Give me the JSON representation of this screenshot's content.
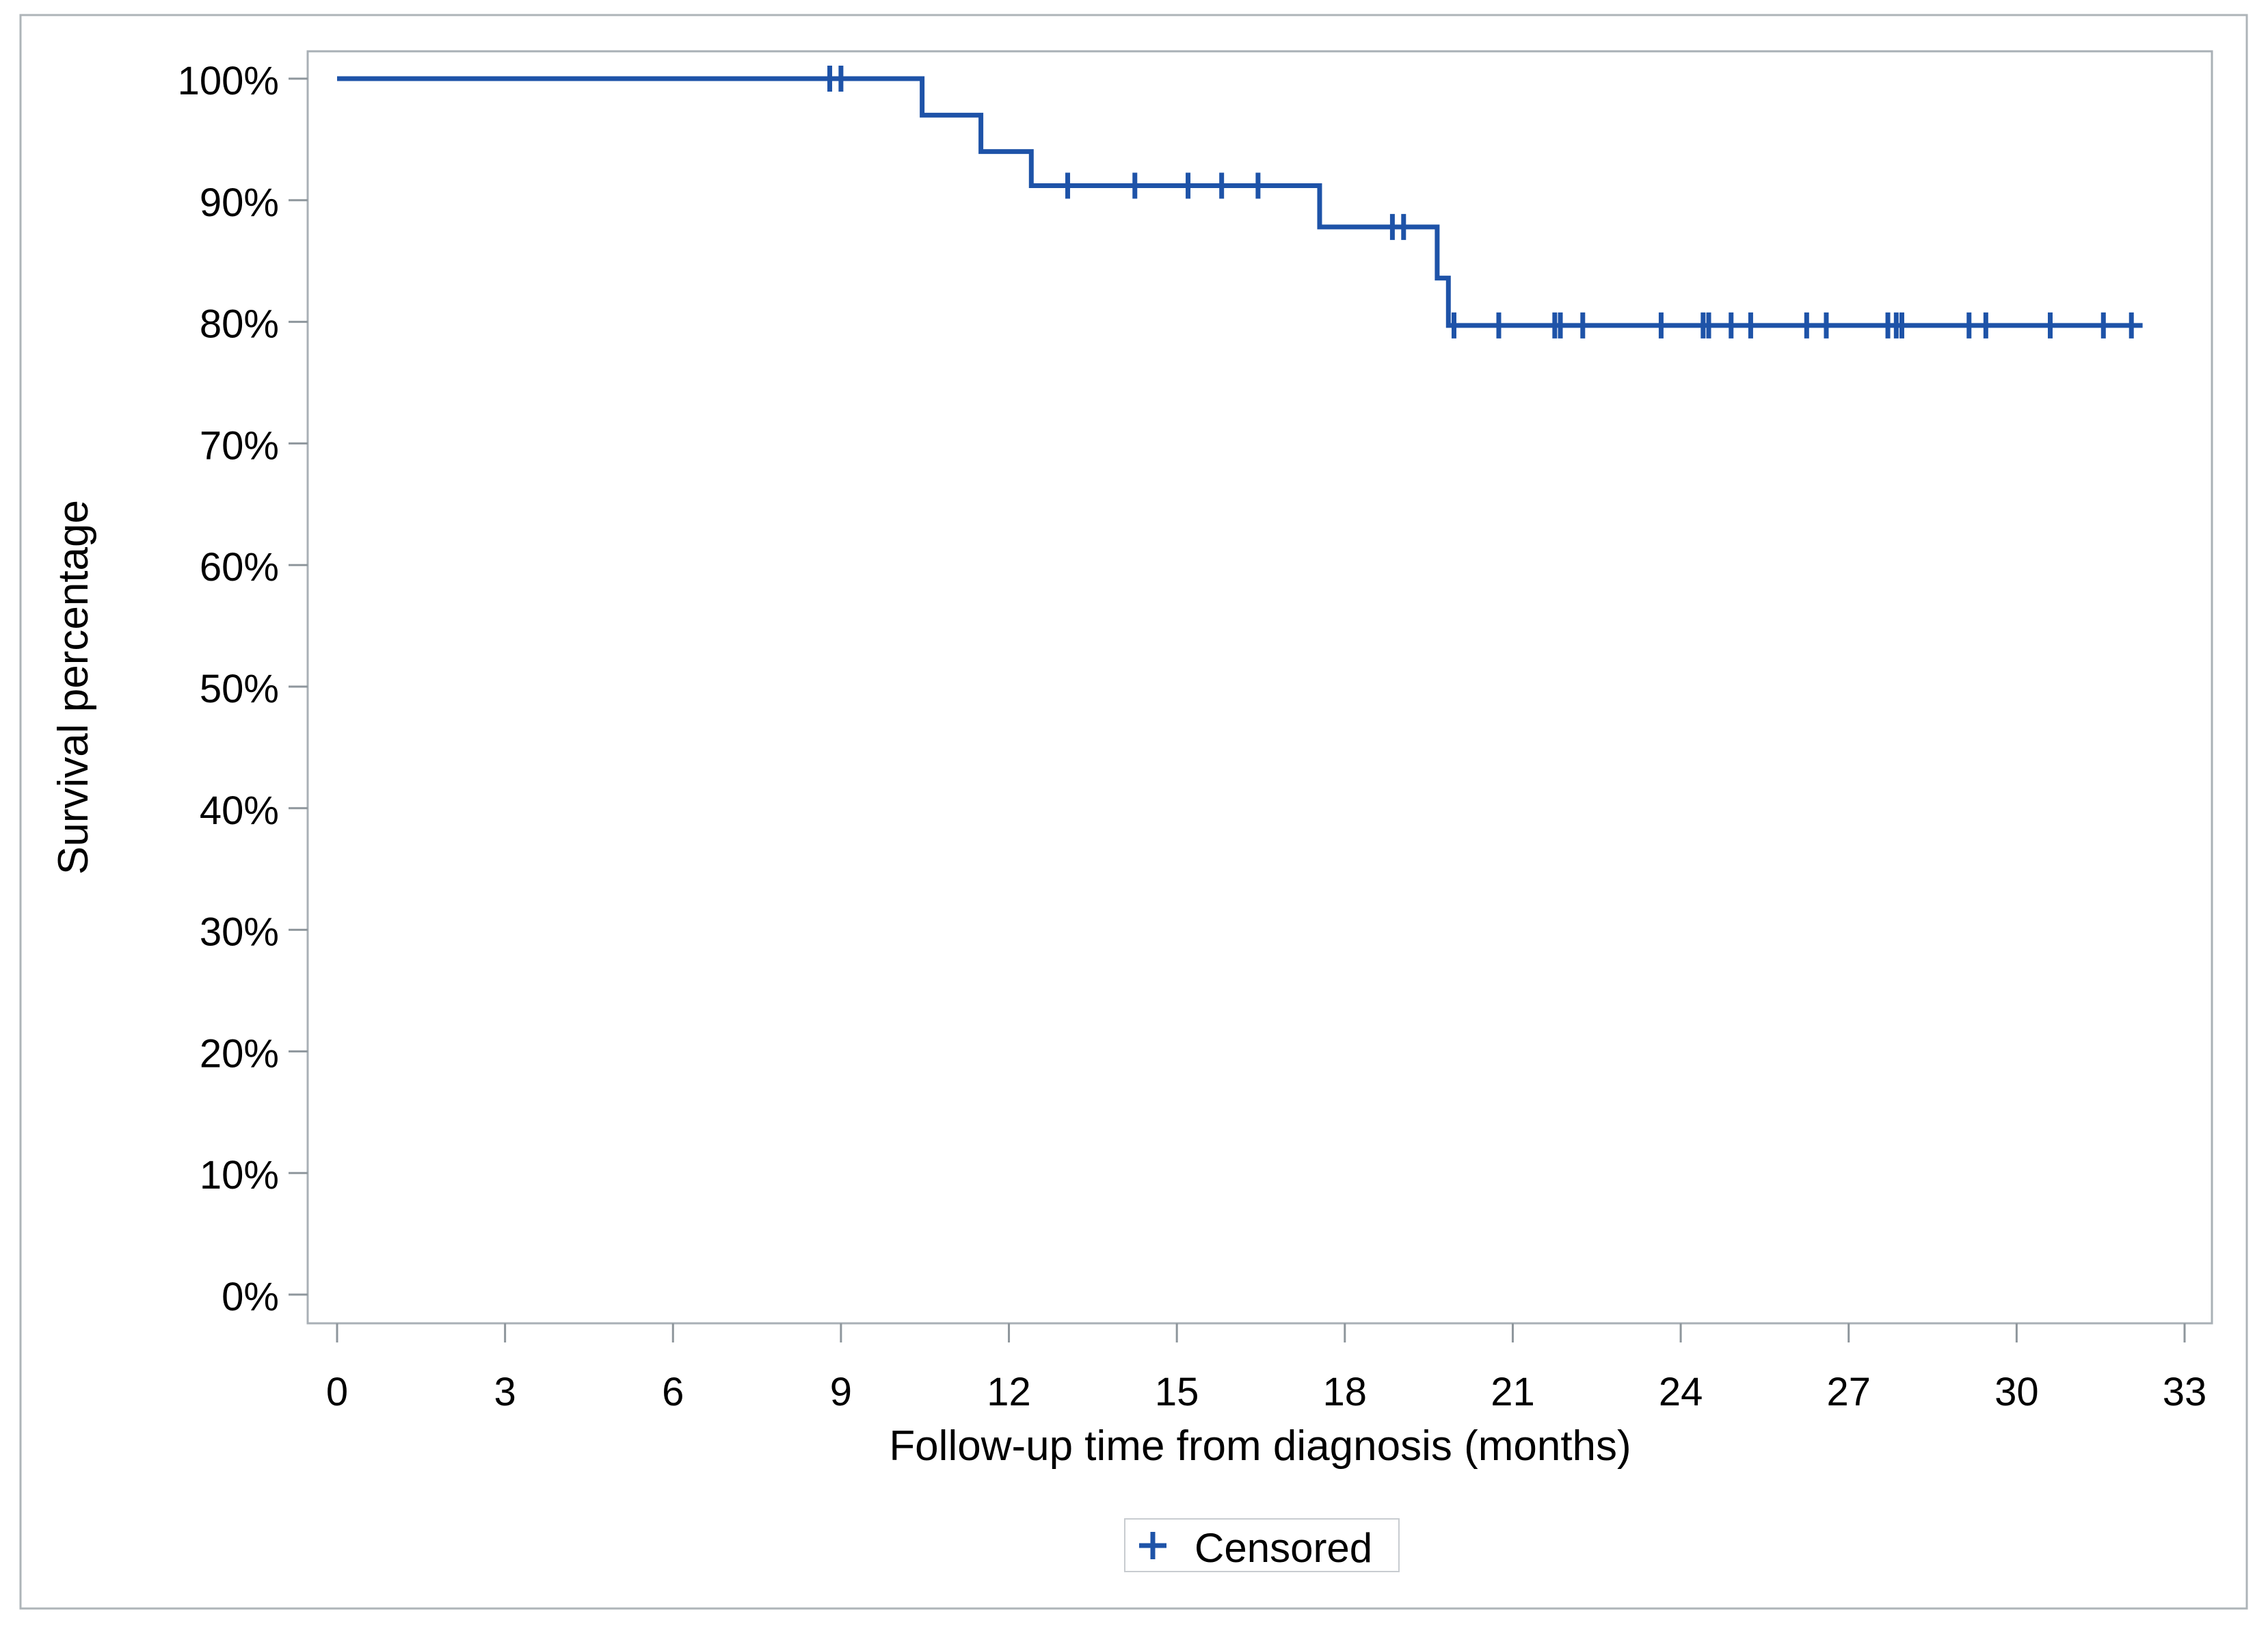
{
  "chart_data": {
    "type": "line",
    "subtype": "kaplan-meier-step",
    "title": "",
    "xlabel": "Follow-up time from diagnosis (months)",
    "ylabel": "Survival percentage",
    "xlim": [
      0,
      33
    ],
    "ylim": [
      0,
      100
    ],
    "grid": false,
    "legend_position": "bottom-center",
    "x_tick_values": [
      0,
      3,
      6,
      9,
      12,
      15,
      18,
      21,
      24,
      27,
      30,
      33
    ],
    "x_tick_labels": [
      "0",
      "3",
      "6",
      "9",
      "12",
      "15",
      "18",
      "21",
      "24",
      "27",
      "30",
      "33"
    ],
    "y_tick_values": [
      100,
      90,
      80,
      70,
      60,
      50,
      40,
      30,
      20,
      10,
      0
    ],
    "y_tick_labels": [
      "100%",
      "90%",
      "80%",
      "70%",
      "60%",
      "50%",
      "40%",
      "30%",
      "20%",
      "10%",
      "0%"
    ],
    "legend": [
      "Censored"
    ],
    "legend_marker": "+",
    "series": [
      {
        "name": "Survival percentage",
        "color": "#1e53a8",
        "start": {
          "t": 0,
          "s": 100
        },
        "end_t": 32.25,
        "drops": [
          [
            10.45,
            97.0
          ],
          [
            11.5,
            94.0
          ],
          [
            12.4,
            91.2
          ],
          [
            17.55,
            87.8
          ],
          [
            19.65,
            83.6
          ],
          [
            19.85,
            79.7
          ]
        ],
        "censored": [
          [
            8.8,
            100
          ],
          [
            9.0,
            100
          ],
          [
            13.05,
            91.2
          ],
          [
            14.25,
            91.2
          ],
          [
            15.2,
            91.2
          ],
          [
            15.8,
            91.2
          ],
          [
            16.45,
            91.2
          ],
          [
            18.85,
            87.8
          ],
          [
            19.05,
            87.8
          ],
          [
            19.95,
            79.7
          ],
          [
            20.75,
            79.7
          ],
          [
            21.75,
            79.7
          ],
          [
            21.85,
            79.7
          ],
          [
            22.25,
            79.7
          ],
          [
            23.65,
            79.7
          ],
          [
            24.4,
            79.7
          ],
          [
            24.5,
            79.7
          ],
          [
            24.9,
            79.7
          ],
          [
            25.25,
            79.7
          ],
          [
            26.25,
            79.7
          ],
          [
            26.6,
            79.7
          ],
          [
            27.7,
            79.7
          ],
          [
            27.85,
            79.7
          ],
          [
            27.95,
            79.7
          ],
          [
            29.15,
            79.7
          ],
          [
            29.45,
            79.7
          ],
          [
            30.6,
            79.7
          ],
          [
            31.55,
            79.7
          ],
          [
            32.05,
            79.7
          ]
        ]
      }
    ],
    "colors": {
      "curve": "#1e53a8",
      "frame": "#a9b0b6",
      "tick": "#8e969c",
      "text": "#000000",
      "legend_border": "#c8ccd0",
      "figure_border": "#aeb4b8",
      "background": "#ffffff"
    }
  }
}
